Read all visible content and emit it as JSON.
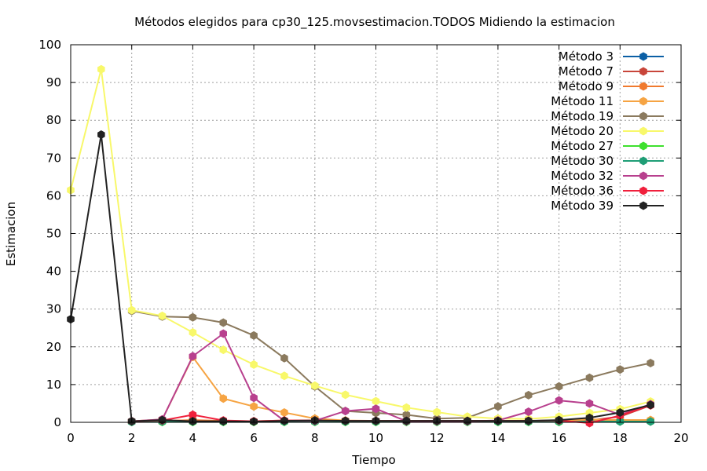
{
  "chart_data": {
    "type": "line",
    "title": "Métodos elegidos para cp30_125.movsestimacion.TODOS Midiendo la estimacion",
    "xlabel": "Tiempo",
    "ylabel": "Estimacion",
    "xlim": [
      0,
      20
    ],
    "ylim": [
      0,
      100
    ],
    "grid": true,
    "legend_position": "top-right",
    "x_ticks": [
      "0",
      "2",
      "4",
      "6",
      "8",
      "10",
      "12",
      "14",
      "16",
      "18",
      "20"
    ],
    "y_ticks": [
      "0",
      "10",
      "20",
      "30",
      "40",
      "50",
      "60",
      "70",
      "80",
      "90",
      "100"
    ],
    "x": [
      0,
      1,
      2,
      3,
      4,
      5,
      6,
      7,
      8,
      9,
      10,
      11,
      12,
      13,
      14,
      15,
      16,
      17,
      18,
      19
    ],
    "series": [
      {
        "name": "Método 3",
        "color": "#0b5fa5",
        "marker": "hexagon",
        "values": [
          null,
          null,
          0.2,
          0.2,
          0.2,
          0.2,
          0.2,
          0.2,
          0.2,
          0.2,
          0.2,
          0.2,
          0.2,
          0.2,
          0.2,
          0.2,
          0.2,
          0.3,
          0.3,
          0.3
        ]
      },
      {
        "name": "Método 7",
        "color": "#c8453a",
        "marker": "hexagon",
        "values": [
          null,
          null,
          0.2,
          0.3,
          0.5,
          0.3,
          0.2,
          0.4,
          0.4,
          0.3,
          0.3,
          0.3,
          0.3,
          0.3,
          0.3,
          0.3,
          0.4,
          0.5,
          1.5,
          4.5
        ]
      },
      {
        "name": "Método 9",
        "color": "#f07a2e",
        "marker": "hexagon",
        "values": [
          null,
          null,
          0.2,
          0.4,
          0.6,
          0.4,
          0.3,
          0.5,
          0.5,
          0.4,
          0.4,
          0.4,
          0.4,
          0.4,
          0.4,
          0.4,
          0.5,
          0.8,
          0.6,
          0.6
        ]
      },
      {
        "name": "Método 11",
        "color": "#f6a443",
        "marker": "hexagon",
        "values": [
          null,
          null,
          0.3,
          0.8,
          17.3,
          6.3,
          4.2,
          2.6,
          1.0,
          0.5,
          0.4,
          0.4,
          0.3,
          0.3,
          0.3,
          0.4,
          0.5,
          0.7,
          0.6,
          0.6
        ]
      },
      {
        "name": "Método 19",
        "color": "#8b7a5e",
        "marker": "hexagon",
        "values": [
          null,
          null,
          29.5,
          28.0,
          27.8,
          26.4,
          23.0,
          17.0,
          9.5,
          3.0,
          2.5,
          2.0,
          1.0,
          1.2,
          4.2,
          7.2,
          9.5,
          11.8,
          14.0,
          15.7
        ]
      },
      {
        "name": "Método 20",
        "color": "#f8f86a",
        "marker": "hexagon",
        "values": [
          61.5,
          93.5,
          29.7,
          28.2,
          23.8,
          19.2,
          15.3,
          12.3,
          9.7,
          7.3,
          5.6,
          3.9,
          2.7,
          1.5,
          1.0,
          0.9,
          1.5,
          2.5,
          3.5,
          5.5
        ]
      },
      {
        "name": "Método 27",
        "color": "#3ee02e",
        "marker": "hexagon",
        "values": [
          null,
          null,
          0.1,
          0.1,
          0.1,
          0.1,
          0.1,
          0.1,
          0.1,
          0.1,
          0.1,
          0.1,
          0.1,
          0.1,
          0.1,
          0.1,
          0.1,
          0.2,
          0.2,
          0.2
        ]
      },
      {
        "name": "Método 30",
        "color": "#1f9e76",
        "marker": "hexagon",
        "values": [
          null,
          null,
          0.1,
          0.2,
          0.2,
          0.2,
          0.2,
          0.2,
          0.2,
          0.2,
          0.2,
          0.2,
          0.2,
          0.2,
          0.2,
          0.2,
          0.2,
          0.2,
          0.2,
          0.2
        ]
      },
      {
        "name": "Método 32",
        "color": "#b8408e",
        "marker": "hexagon",
        "values": [
          null,
          null,
          0.3,
          0.8,
          17.5,
          23.5,
          6.5,
          0.4,
          0.4,
          3.0,
          3.6,
          0.3,
          0.3,
          0.3,
          0.5,
          2.8,
          5.8,
          5.0,
          2.0,
          4.8
        ]
      },
      {
        "name": "Método 36",
        "color": "#f0203c",
        "marker": "hexagon",
        "values": [
          null,
          null,
          0.3,
          0.5,
          2.0,
          0.5,
          0.3,
          0.5,
          0.5,
          0.4,
          0.4,
          0.4,
          0.4,
          0.4,
          0.4,
          0.4,
          0.5,
          -0.2,
          1.8,
          4.5
        ]
      },
      {
        "name": "Método 39",
        "color": "#222222",
        "marker": "hexagon",
        "values": [
          27.3,
          76.2,
          0.3,
          0.6,
          0.3,
          0.3,
          0.2,
          0.4,
          0.5,
          0.4,
          0.4,
          0.4,
          0.4,
          0.4,
          0.4,
          0.4,
          0.6,
          1.2,
          2.6,
          4.6
        ]
      }
    ]
  }
}
